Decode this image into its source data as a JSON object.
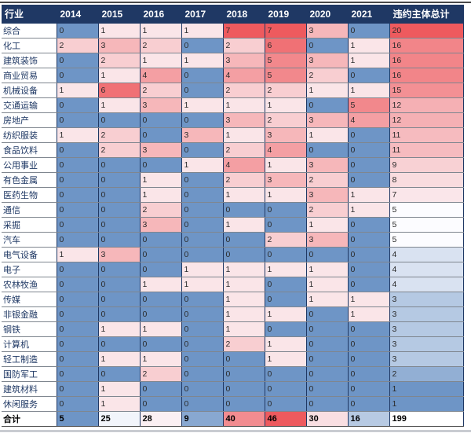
{
  "colors": {
    "header_bg": "#1F3864",
    "header_text": "#FFFFFF",
    "scale_blue": "#6E95C6",
    "scale_white": "#FCFCFF",
    "scale_red": "#EE5A5E",
    "label_text": "#1F3864",
    "cell_text": "#2B2B2B",
    "total_text": "#000000",
    "grid_vertical": "#1F3864",
    "grid_horizontal": "#7F868F",
    "top_rule": "#4A4A4A",
    "bottom_strip": "#C9CCD1"
  },
  "chart_data": {
    "type": "heatmap",
    "title": "",
    "columns": [
      "行业",
      "2014",
      "2015",
      "2016",
      "2017",
      "2018",
      "2019",
      "2020",
      "2021",
      "违约主体总计"
    ],
    "rows": [
      {
        "industry": "综合",
        "values": [
          0,
          1,
          1,
          1,
          7,
          7,
          3,
          0
        ],
        "total": 20
      },
      {
        "industry": "化工",
        "values": [
          2,
          3,
          2,
          0,
          2,
          6,
          0,
          1
        ],
        "total": 16
      },
      {
        "industry": "建筑装饰",
        "values": [
          0,
          2,
          1,
          1,
          3,
          5,
          3,
          1
        ],
        "total": 16
      },
      {
        "industry": "商业贸易",
        "values": [
          0,
          1,
          4,
          0,
          4,
          5,
          2,
          0
        ],
        "total": 16
      },
      {
        "industry": "机械设备",
        "values": [
          1,
          6,
          2,
          0,
          2,
          2,
          1,
          1
        ],
        "total": 15
      },
      {
        "industry": "交通运输",
        "values": [
          0,
          1,
          3,
          1,
          1,
          1,
          0,
          5
        ],
        "total": 12
      },
      {
        "industry": "房地产",
        "values": [
          0,
          0,
          0,
          0,
          3,
          2,
          3,
          4
        ],
        "total": 12
      },
      {
        "industry": "纺织服装",
        "values": [
          1,
          2,
          0,
          3,
          1,
          3,
          1,
          0
        ],
        "total": 11
      },
      {
        "industry": "食品饮料",
        "values": [
          0,
          2,
          3,
          0,
          2,
          4,
          0,
          0
        ],
        "total": 11
      },
      {
        "industry": "公用事业",
        "values": [
          0,
          0,
          0,
          1,
          4,
          1,
          3,
          0
        ],
        "total": 9
      },
      {
        "industry": "有色金属",
        "values": [
          0,
          0,
          1,
          0,
          2,
          3,
          2,
          0
        ],
        "total": 8
      },
      {
        "industry": "医药生物",
        "values": [
          0,
          0,
          1,
          0,
          1,
          1,
          3,
          1
        ],
        "total": 7
      },
      {
        "industry": "通信",
        "values": [
          0,
          0,
          2,
          0,
          0,
          0,
          2,
          1
        ],
        "total": 5
      },
      {
        "industry": "采掘",
        "values": [
          0,
          0,
          3,
          0,
          1,
          0,
          1,
          0
        ],
        "total": 5
      },
      {
        "industry": "汽车",
        "values": [
          0,
          0,
          0,
          0,
          0,
          2,
          3,
          0
        ],
        "total": 5
      },
      {
        "industry": "电气设备",
        "values": [
          1,
          3,
          0,
          0,
          0,
          0,
          0,
          0
        ],
        "total": 4
      },
      {
        "industry": "电子",
        "values": [
          0,
          0,
          0,
          1,
          1,
          1,
          1,
          0
        ],
        "total": 4
      },
      {
        "industry": "农林牧渔",
        "values": [
          0,
          0,
          1,
          1,
          1,
          0,
          1,
          0
        ],
        "total": 4
      },
      {
        "industry": "传媒",
        "values": [
          0,
          0,
          0,
          0,
          1,
          0,
          1,
          1
        ],
        "total": 3
      },
      {
        "industry": "非银金融",
        "values": [
          0,
          0,
          0,
          0,
          1,
          1,
          0,
          1
        ],
        "total": 3
      },
      {
        "industry": "钢铁",
        "values": [
          0,
          1,
          1,
          0,
          1,
          0,
          0,
          0
        ],
        "total": 3
      },
      {
        "industry": "计算机",
        "values": [
          0,
          0,
          0,
          0,
          2,
          1,
          0,
          0
        ],
        "total": 3
      },
      {
        "industry": "轻工制造",
        "values": [
          0,
          1,
          1,
          0,
          0,
          1,
          0,
          0
        ],
        "total": 3
      },
      {
        "industry": "国防军工",
        "values": [
          0,
          0,
          2,
          0,
          0,
          0,
          0,
          0
        ],
        "total": 2
      },
      {
        "industry": "建筑材料",
        "values": [
          0,
          1,
          0,
          0,
          0,
          0,
          0,
          0
        ],
        "total": 1
      },
      {
        "industry": "休闲服务",
        "values": [
          0,
          1,
          0,
          0,
          0,
          0,
          0,
          0
        ],
        "total": 1
      }
    ],
    "total_row": {
      "label": "合计",
      "values": [
        5,
        25,
        28,
        9,
        40,
        46,
        30,
        16
      ],
      "total": 199
    },
    "layout": {
      "label_col_width": 70,
      "year_col_width": 53,
      "total_col_width": 94,
      "color_scale": "blue-white-red, percentile-50 midpoint, applied separately to year grid, total column and total row"
    }
  }
}
